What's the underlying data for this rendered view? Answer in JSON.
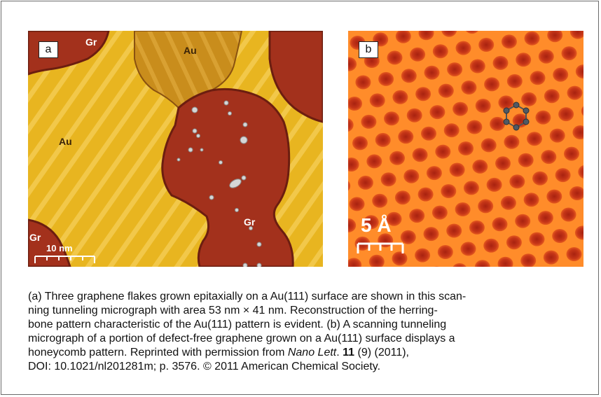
{
  "figure": {
    "panel_a": {
      "label": "a",
      "regions": {
        "gr_top_left": "Gr",
        "au_top": "Au",
        "au_left": "Au",
        "gr_center": "Gr",
        "gr_bottom_left": "Gr"
      },
      "scale_bar_label": "10 nm",
      "colors": {
        "gold": "#e8b520",
        "gold_stripe": "#f4cf55",
        "dark_gold": "#c48818",
        "graphene": "#a3311c",
        "graphene_dark": "#6c1e10"
      }
    },
    "panel_b": {
      "label": "b",
      "scale_bar_label": "5 Å",
      "colors": {
        "base": "#ff8c2a",
        "hole": "#c02c12",
        "highlight": "#ffd070",
        "atom": "#505a64"
      }
    }
  },
  "caption": {
    "lines": [
      "(a) Three graphene flakes grown epitaxially on a Au(111) surface are shown in this scan-",
      "ning tunneling micrograph with area 53 nm × 41 nm. Reconstruction of the herring-",
      "bone pattern characteristic of the Au(111) pattern is evident. (b) A scanning tunneling",
      "micrograph of a portion of defect-free graphene grown on a Au(111) surface displays a"
    ],
    "line5_prefix": "honeycomb pattern. Reprinted with permission from ",
    "journal": "Nano Lett",
    "after_journal": ". ",
    "volume": "11",
    "after_volume": " (9) (2011),",
    "line6": "DOI: 10.1021/nl201281m; p. 3576. © 2011 American Chemical Society."
  }
}
